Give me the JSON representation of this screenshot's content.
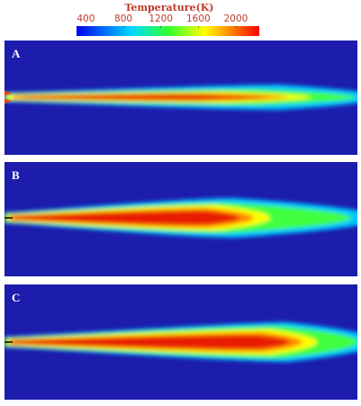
{
  "colorbar": {
    "title": "Temperature(K)",
    "range": [
      300,
      2250
    ],
    "ticks": [
      400,
      800,
      1200,
      1600,
      2000
    ]
  },
  "panels": [
    {
      "label": "A"
    },
    {
      "label": "B"
    },
    {
      "label": "C"
    }
  ]
}
